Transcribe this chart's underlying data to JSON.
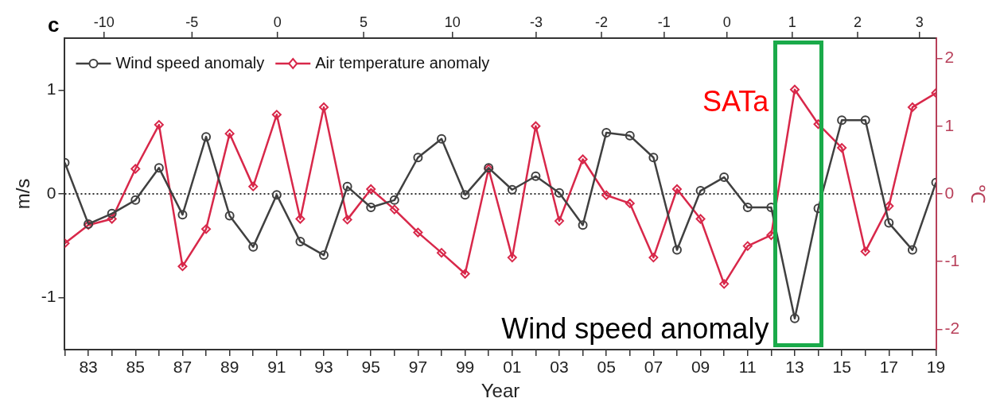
{
  "chart_data": {
    "type": "line",
    "x": [
      1982,
      1983,
      1984,
      1985,
      1986,
      1987,
      1988,
      1989,
      1990,
      1991,
      1992,
      1993,
      1994,
      1995,
      1996,
      1997,
      1998,
      1999,
      2000,
      2001,
      2002,
      2003,
      2004,
      2005,
      2006,
      2007,
      2008,
      2009,
      2010,
      2011,
      2012,
      2013,
      2014,
      2015,
      2016,
      2017,
      2018,
      2019
    ],
    "series": [
      {
        "name": "Wind speed anomaly",
        "color": "#404040",
        "marker": "circle",
        "values": [
          0.3,
          -0.29,
          -0.19,
          -0.06,
          0.25,
          -0.2,
          0.55,
          -0.21,
          -0.51,
          -0.01,
          -0.46,
          -0.59,
          0.07,
          -0.13,
          -0.06,
          0.35,
          0.53,
          -0.01,
          0.25,
          0.04,
          0.17,
          0.01,
          -0.3,
          0.59,
          0.56,
          0.35,
          -0.54,
          0.03,
          0.16,
          -0.13,
          -0.13,
          -1.2,
          -0.14,
          0.71,
          0.71,
          -0.28,
          -0.54,
          0.11
        ]
      },
      {
        "name": "Air temperature anomaly",
        "color": "#d8284a",
        "marker": "diamond",
        "axis": "y2",
        "values": [
          -0.73,
          -0.46,
          -0.37,
          0.37,
          1.02,
          -1.07,
          -0.52,
          0.89,
          0.11,
          1.17,
          -0.37,
          1.28,
          -0.38,
          0.07,
          -0.23,
          -0.57,
          -0.87,
          -1.18,
          0.37,
          -0.94,
          1.0,
          -0.4,
          0.51,
          -0.02,
          -0.14,
          -0.94,
          0.07,
          -0.37,
          -1.33,
          -0.77,
          -0.61,
          1.54,
          1.03,
          0.68,
          -0.85,
          -0.18,
          1.28,
          1.49
        ]
      }
    ],
    "xlabel": "Year",
    "ylabel": "m/s",
    "y2label": "℃",
    "xlim": [
      1982,
      2019
    ],
    "xticks": [
      {
        "value": 1982,
        "label": null
      },
      {
        "value": 1983,
        "label": "83"
      },
      {
        "value": 1984,
        "label": null
      },
      {
        "value": 1985,
        "label": "85"
      },
      {
        "value": 1986,
        "label": null
      },
      {
        "value": 1987,
        "label": "87"
      },
      {
        "value": 1988,
        "label": null
      },
      {
        "value": 1989,
        "label": "89"
      },
      {
        "value": 1990,
        "label": null
      },
      {
        "value": 1991,
        "label": "91"
      },
      {
        "value": 1992,
        "label": null
      },
      {
        "value": 1993,
        "label": "93"
      },
      {
        "value": 1994,
        "label": null
      },
      {
        "value": 1995,
        "label": "95"
      },
      {
        "value": 1996,
        "label": null
      },
      {
        "value": 1997,
        "label": "97"
      },
      {
        "value": 1998,
        "label": null
      },
      {
        "value": 1999,
        "label": "99"
      },
      {
        "value": 2000,
        "label": null
      },
      {
        "value": 2001,
        "label": "01"
      },
      {
        "value": 2002,
        "label": null
      },
      {
        "value": 2003,
        "label": "03"
      },
      {
        "value": 2004,
        "label": null
      },
      {
        "value": 2005,
        "label": "05"
      },
      {
        "value": 2006,
        "label": null
      },
      {
        "value": 2007,
        "label": "07"
      },
      {
        "value": 2008,
        "label": null
      },
      {
        "value": 2009,
        "label": "09"
      },
      {
        "value": 2010,
        "label": null
      },
      {
        "value": 2011,
        "label": "11"
      },
      {
        "value": 2012,
        "label": null
      },
      {
        "value": 2013,
        "label": "13"
      },
      {
        "value": 2014,
        "label": null
      },
      {
        "value": 2015,
        "label": "15"
      },
      {
        "value": 2016,
        "label": null
      },
      {
        "value": 2017,
        "label": "17"
      },
      {
        "value": 2018,
        "label": null
      },
      {
        "value": 2019,
        "label": "19"
      }
    ],
    "ylim": [
      -1.5,
      1.5
    ],
    "yticks": [
      -1,
      0,
      1
    ],
    "y2lim": [
      -2.3,
      2.3
    ],
    "y2ticks": [
      -2,
      -1,
      0,
      1,
      2
    ],
    "ref_lines": [
      {
        "axis": "y",
        "value": 0,
        "color": "#333333",
        "line_style": "dotted"
      }
    ],
    "annotations": [
      "c",
      "SATa",
      "Wind speed anomaly",
      "-10",
      "-5",
      "0",
      "5",
      "10",
      "-3",
      "-2",
      "-1",
      "0",
      "1",
      "2",
      "3"
    ],
    "legend": "top left",
    "grid": false,
    "line_style": "solid"
  }
}
